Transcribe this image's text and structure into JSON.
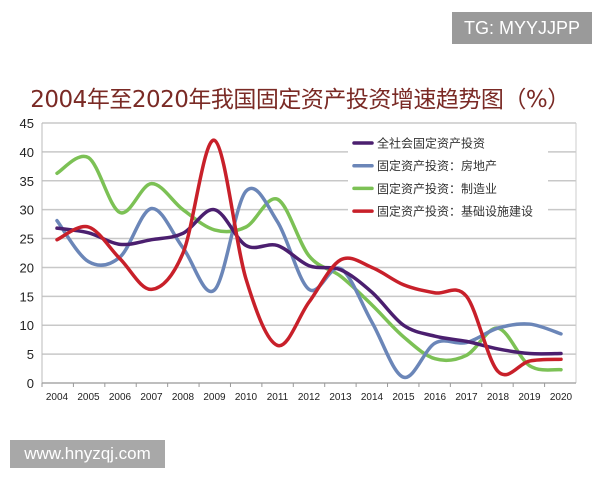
{
  "watermark_top": "TG: MYYJJPP",
  "watermark_bottom": "www.hnyzqj.com",
  "chart_data": {
    "type": "line",
    "title": "2004年至2020年我国固定资产投资增速趋势图（%）",
    "xlabel": "",
    "ylabel": "",
    "ylim": [
      0,
      45
    ],
    "yticks": [
      "0",
      "5",
      "10",
      "15",
      "20",
      "25",
      "30",
      "35",
      "40",
      "45"
    ],
    "grid": true,
    "legend_position": "top-right",
    "categories": [
      "2004",
      "2005",
      "2006",
      "2007",
      "2008",
      "2009",
      "2010",
      "2011",
      "2012",
      "2013",
      "2014",
      "2015",
      "2016",
      "2017",
      "2018",
      "2019",
      "2020"
    ],
    "series": [
      {
        "name": "全社会固定资产投资",
        "color": "#4b1f6f",
        "values": [
          26.8,
          26,
          24,
          24.8,
          25.9,
          30,
          23.8,
          23.8,
          20.3,
          19.6,
          15.7,
          10,
          8.1,
          7.2,
          5.9,
          5.1,
          5.1
        ]
      },
      {
        "name": "固定资产投资：房地产",
        "color": "#6b86b8",
        "values": [
          28.1,
          21,
          21.8,
          30.2,
          23.4,
          16.1,
          33.2,
          27.9,
          16.2,
          19.8,
          10.5,
          1,
          6.9,
          7,
          9.5,
          10.2,
          8.5
        ]
      },
      {
        "name": "固定资产投资：制造业",
        "color": "#7cc155",
        "values": [
          36.3,
          39,
          29.5,
          34.5,
          30,
          26.5,
          27,
          31.8,
          22,
          18.5,
          13.5,
          8,
          4.2,
          4.8,
          9.5,
          3,
          2.3
        ]
      },
      {
        "name": "固定资产投资：基础设施建设",
        "color": "#c8202a",
        "values": [
          24.8,
          27,
          21.5,
          16.2,
          22.5,
          42,
          18,
          6.5,
          14,
          21.3,
          20,
          17,
          15.6,
          15,
          2,
          3.8,
          4.1
        ]
      }
    ]
  }
}
